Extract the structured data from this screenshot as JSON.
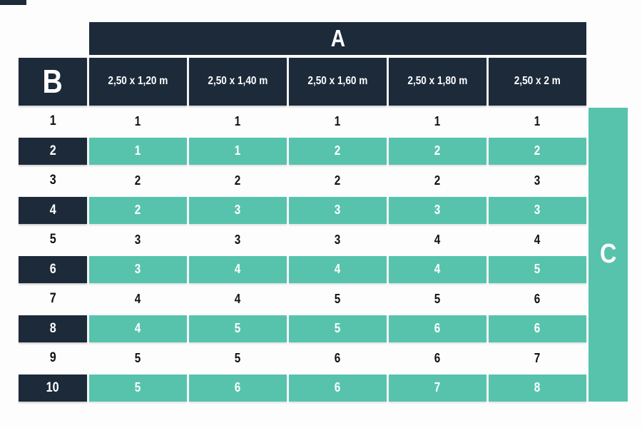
{
  "header": {
    "a_label": "A",
    "b_label": "B",
    "c_label": "C"
  },
  "columns": [
    "2,50 x 1,20 m",
    "2,50 x 1,40 m",
    "2,50 x 1,60 m",
    "2,50 x 1,80 m",
    "2,50 x 2 m"
  ],
  "rows": [
    {
      "label": "1",
      "values": [
        "1",
        "1",
        "1",
        "1",
        "1"
      ],
      "highlight": false
    },
    {
      "label": "2",
      "values": [
        "1",
        "1",
        "2",
        "2",
        "2"
      ],
      "highlight": true
    },
    {
      "label": "3",
      "values": [
        "2",
        "2",
        "2",
        "2",
        "3"
      ],
      "highlight": false
    },
    {
      "label": "4",
      "values": [
        "2",
        "3",
        "3",
        "3",
        "3"
      ],
      "highlight": true
    },
    {
      "label": "5",
      "values": [
        "3",
        "3",
        "3",
        "4",
        "4"
      ],
      "highlight": false
    },
    {
      "label": "6",
      "values": [
        "3",
        "4",
        "4",
        "4",
        "5"
      ],
      "highlight": true
    },
    {
      "label": "7",
      "values": [
        "4",
        "4",
        "5",
        "5",
        "6"
      ],
      "highlight": false
    },
    {
      "label": "8",
      "values": [
        "4",
        "5",
        "5",
        "6",
        "6"
      ],
      "highlight": true
    },
    {
      "label": "9",
      "values": [
        "5",
        "5",
        "6",
        "6",
        "7"
      ],
      "highlight": false
    },
    {
      "label": "10",
      "values": [
        "5",
        "6",
        "6",
        "7",
        "8"
      ],
      "highlight": true
    }
  ],
  "colors": {
    "navy": "#1c2a3a",
    "teal": "#57c3ad",
    "background": "#fdfdfd"
  }
}
